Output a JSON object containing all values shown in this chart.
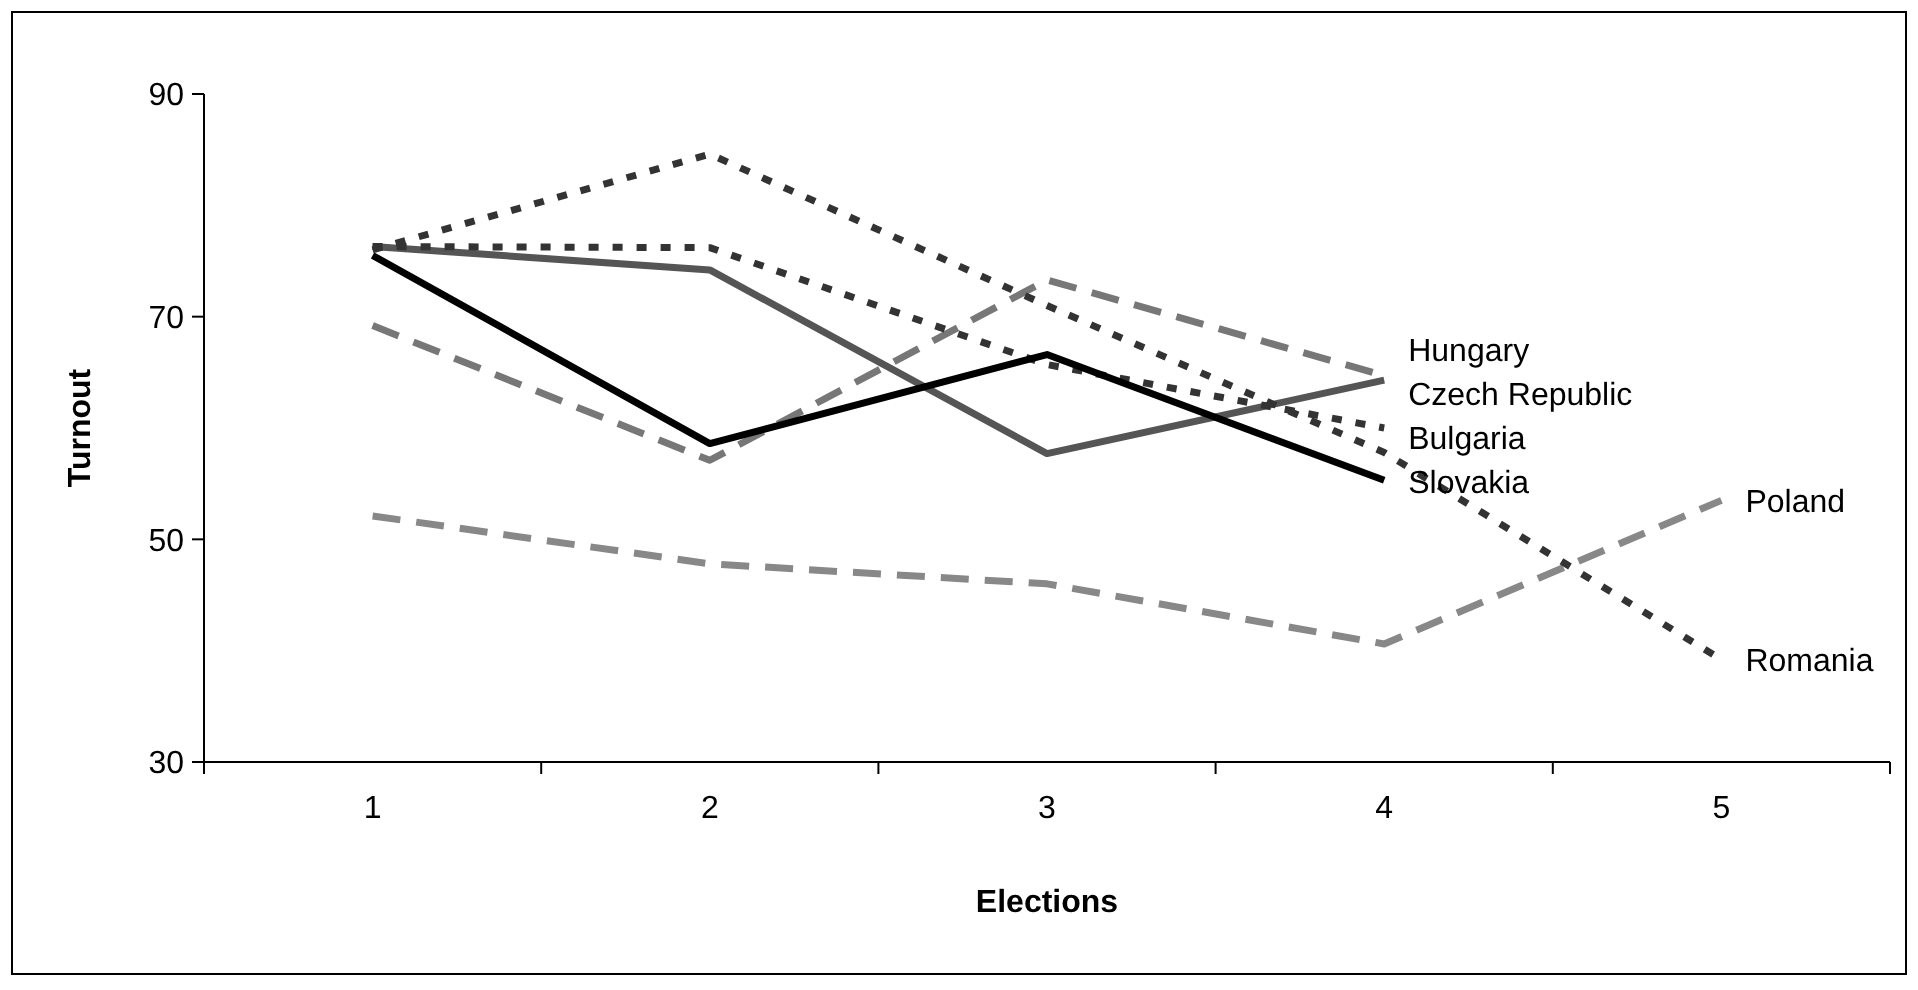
{
  "chart_data": {
    "type": "line",
    "xlabel": "Elections",
    "ylabel": "Turnout",
    "categories": [
      "1",
      "2",
      "3",
      "4",
      "5"
    ],
    "ylim": [
      30,
      90
    ],
    "yticks": [
      30,
      50,
      70,
      90
    ],
    "grid": false,
    "legend": false,
    "marker": "none",
    "series": [
      {
        "name": "Hungary",
        "color": "#777777",
        "line_style": "dashed",
        "values": [
          69.2,
          57.1,
          73.3,
          64.7,
          null
        ]
      },
      {
        "name": "Czech Republic",
        "color": "#555555",
        "line_style": "solid",
        "values": [
          76.3,
          74.2,
          57.7,
          64.3,
          null
        ]
      },
      {
        "name": "Bulgaria",
        "color": "#333333",
        "line_style": "dotted",
        "values": [
          76.3,
          76.2,
          65.7,
          60,
          null
        ]
      },
      {
        "name": "Slovakia",
        "color": "#000000",
        "line_style": "solid",
        "values": [
          75.5,
          58.6,
          66.6,
          55.3,
          null
        ]
      },
      {
        "name": "Poland",
        "color": "#888888",
        "line_style": "dashed",
        "values": [
          52.1,
          47.8,
          46,
          40.6,
          53.5
        ]
      },
      {
        "name": "Romania",
        "color": "#333333",
        "line_style": "dotted",
        "values": [
          76,
          84.6,
          71,
          57.8,
          39.2
        ]
      }
    ]
  }
}
